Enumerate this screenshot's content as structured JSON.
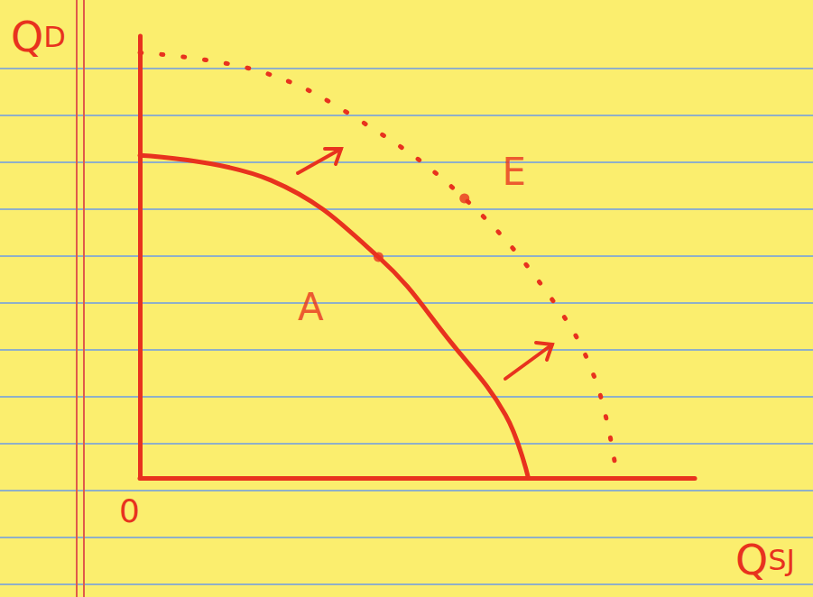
{
  "chart_data": {
    "type": "line",
    "x_label": "QSJ",
    "y_label": "QD",
    "xlim": [
      0,
      10
    ],
    "ylim": [
      0,
      8
    ],
    "xticks": [
      0
    ],
    "tick_labels": "x",
    "grid": false,
    "series": [
      {
        "x": [
          0,
          2.36,
          4.3,
          5.61,
          6.59,
          7.0
        ],
        "values": [
          5.84,
          5.39,
          4.0,
          2.45,
          1.14,
          0
        ],
        "color": "#e8321e",
        "line_style": "solid"
      },
      {
        "x": [
          0,
          2.2,
          4.0,
          5.85,
          7.4,
          8.2,
          8.6
        ],
        "values": [
          7.7,
          7.35,
          6.45,
          5.06,
          3.27,
          1.8,
          0
        ],
        "color": "#e8321e",
        "line_style": "dotted"
      }
    ],
    "annotations": [
      {
        "text": "A",
        "x": 4.3,
        "y": 4.0
      },
      {
        "text": "E",
        "x": 5.85,
        "y": 5.06
      }
    ]
  }
}
